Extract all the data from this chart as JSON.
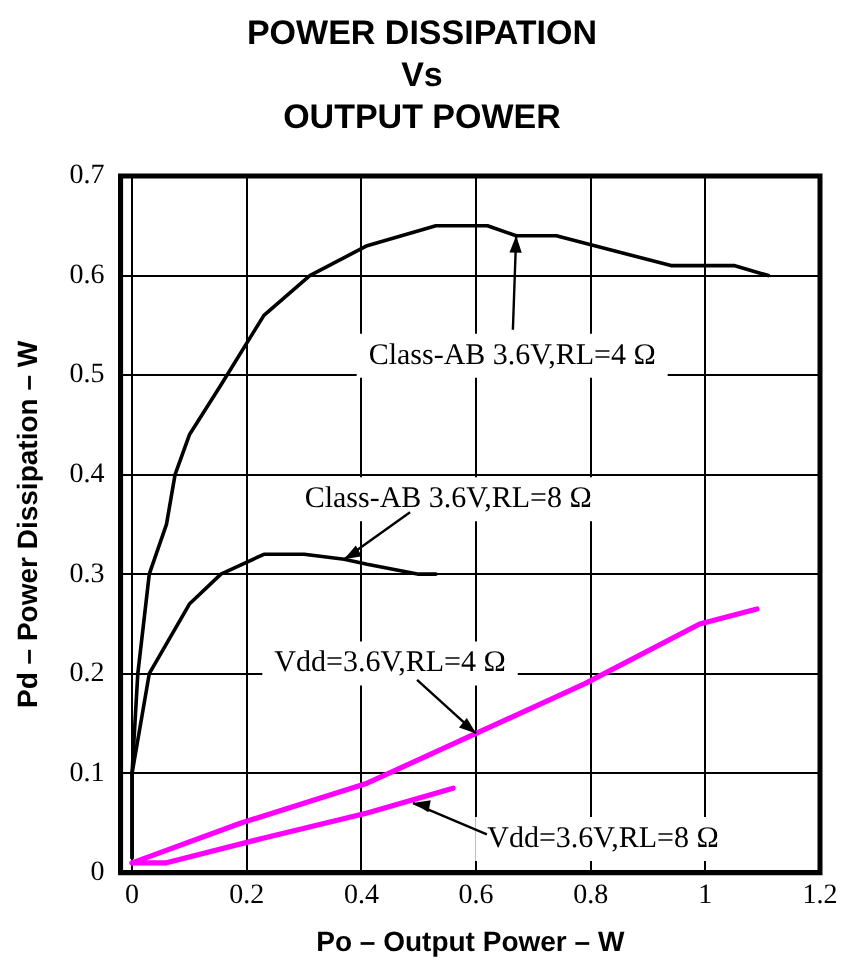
{
  "chart_data": {
    "type": "line",
    "title": "POWER DISSIPATION\nVs\nOUTPUT POWER",
    "xlabel": "Po – Output Power – W",
    "ylabel": "Pd – Power Dissipation – W",
    "xlim": [
      -0.02,
      1.2
    ],
    "xticks": [
      0,
      0.2,
      0.4,
      0.6,
      0.8,
      1,
      1.2
    ],
    "ylim": [
      0,
      0.7
    ],
    "yticks": [
      0,
      0.1,
      0.2,
      0.3,
      0.4,
      0.5,
      0.6,
      0.7
    ],
    "grid": true,
    "legend": false,
    "marker": "none",
    "line_style": "solid",
    "series": [
      {
        "color": "#000000",
        "x": [
          0,
          0,
          0.01,
          0.03,
          0.06,
          0.075,
          0.1,
          0.155,
          0.23,
          0.31,
          0.41,
          0.53,
          0.62,
          0.67,
          0.74,
          0.94,
          1.05,
          1.11
        ],
        "values": [
          0.015,
          0.1,
          0.2,
          0.3,
          0.35,
          0.4,
          0.44,
          0.49,
          0.56,
          0.6,
          0.63,
          0.65,
          0.65,
          0.64,
          0.64,
          0.61,
          0.61,
          0.6
        ]
      },
      {
        "color": "#000000",
        "x": [
          0,
          0,
          0.03,
          0.1,
          0.155,
          0.23,
          0.3,
          0.37,
          0.41,
          0.5,
          0.53
        ],
        "values": [
          0.015,
          0.1,
          0.2,
          0.27,
          0.3,
          0.32,
          0.32,
          0.315,
          0.31,
          0.3,
          0.3
        ]
      },
      {
        "color": "#ff00ff",
        "x": [
          0,
          0.19,
          0.41,
          0.6,
          0.79,
          0.99,
          1.09
        ],
        "values": [
          0.01,
          0.05,
          0.09,
          0.14,
          0.19,
          0.25,
          0.265
        ]
      },
      {
        "color": "#ff00ff",
        "x": [
          0,
          0.06,
          0.23,
          0.41,
          0.56
        ],
        "values": [
          0.01,
          0.01,
          0.035,
          0.06,
          0.085
        ]
      }
    ],
    "annotations": [
      {
        "text": "Class-AB 3.6V,RL=4 Ω",
        "x": 0.67,
        "y": 0.64
      },
      {
        "text": "Class-AB 3.6V,RL=8 Ω",
        "x": 0.37,
        "y": 0.315
      },
      {
        "text": "Vdd=3.6V,RL=4 Ω",
        "x": 0.6,
        "y": 0.14
      },
      {
        "text": "Vdd=3.6V,RL=8 Ω",
        "x": 0.49,
        "y": 0.07
      }
    ]
  }
}
